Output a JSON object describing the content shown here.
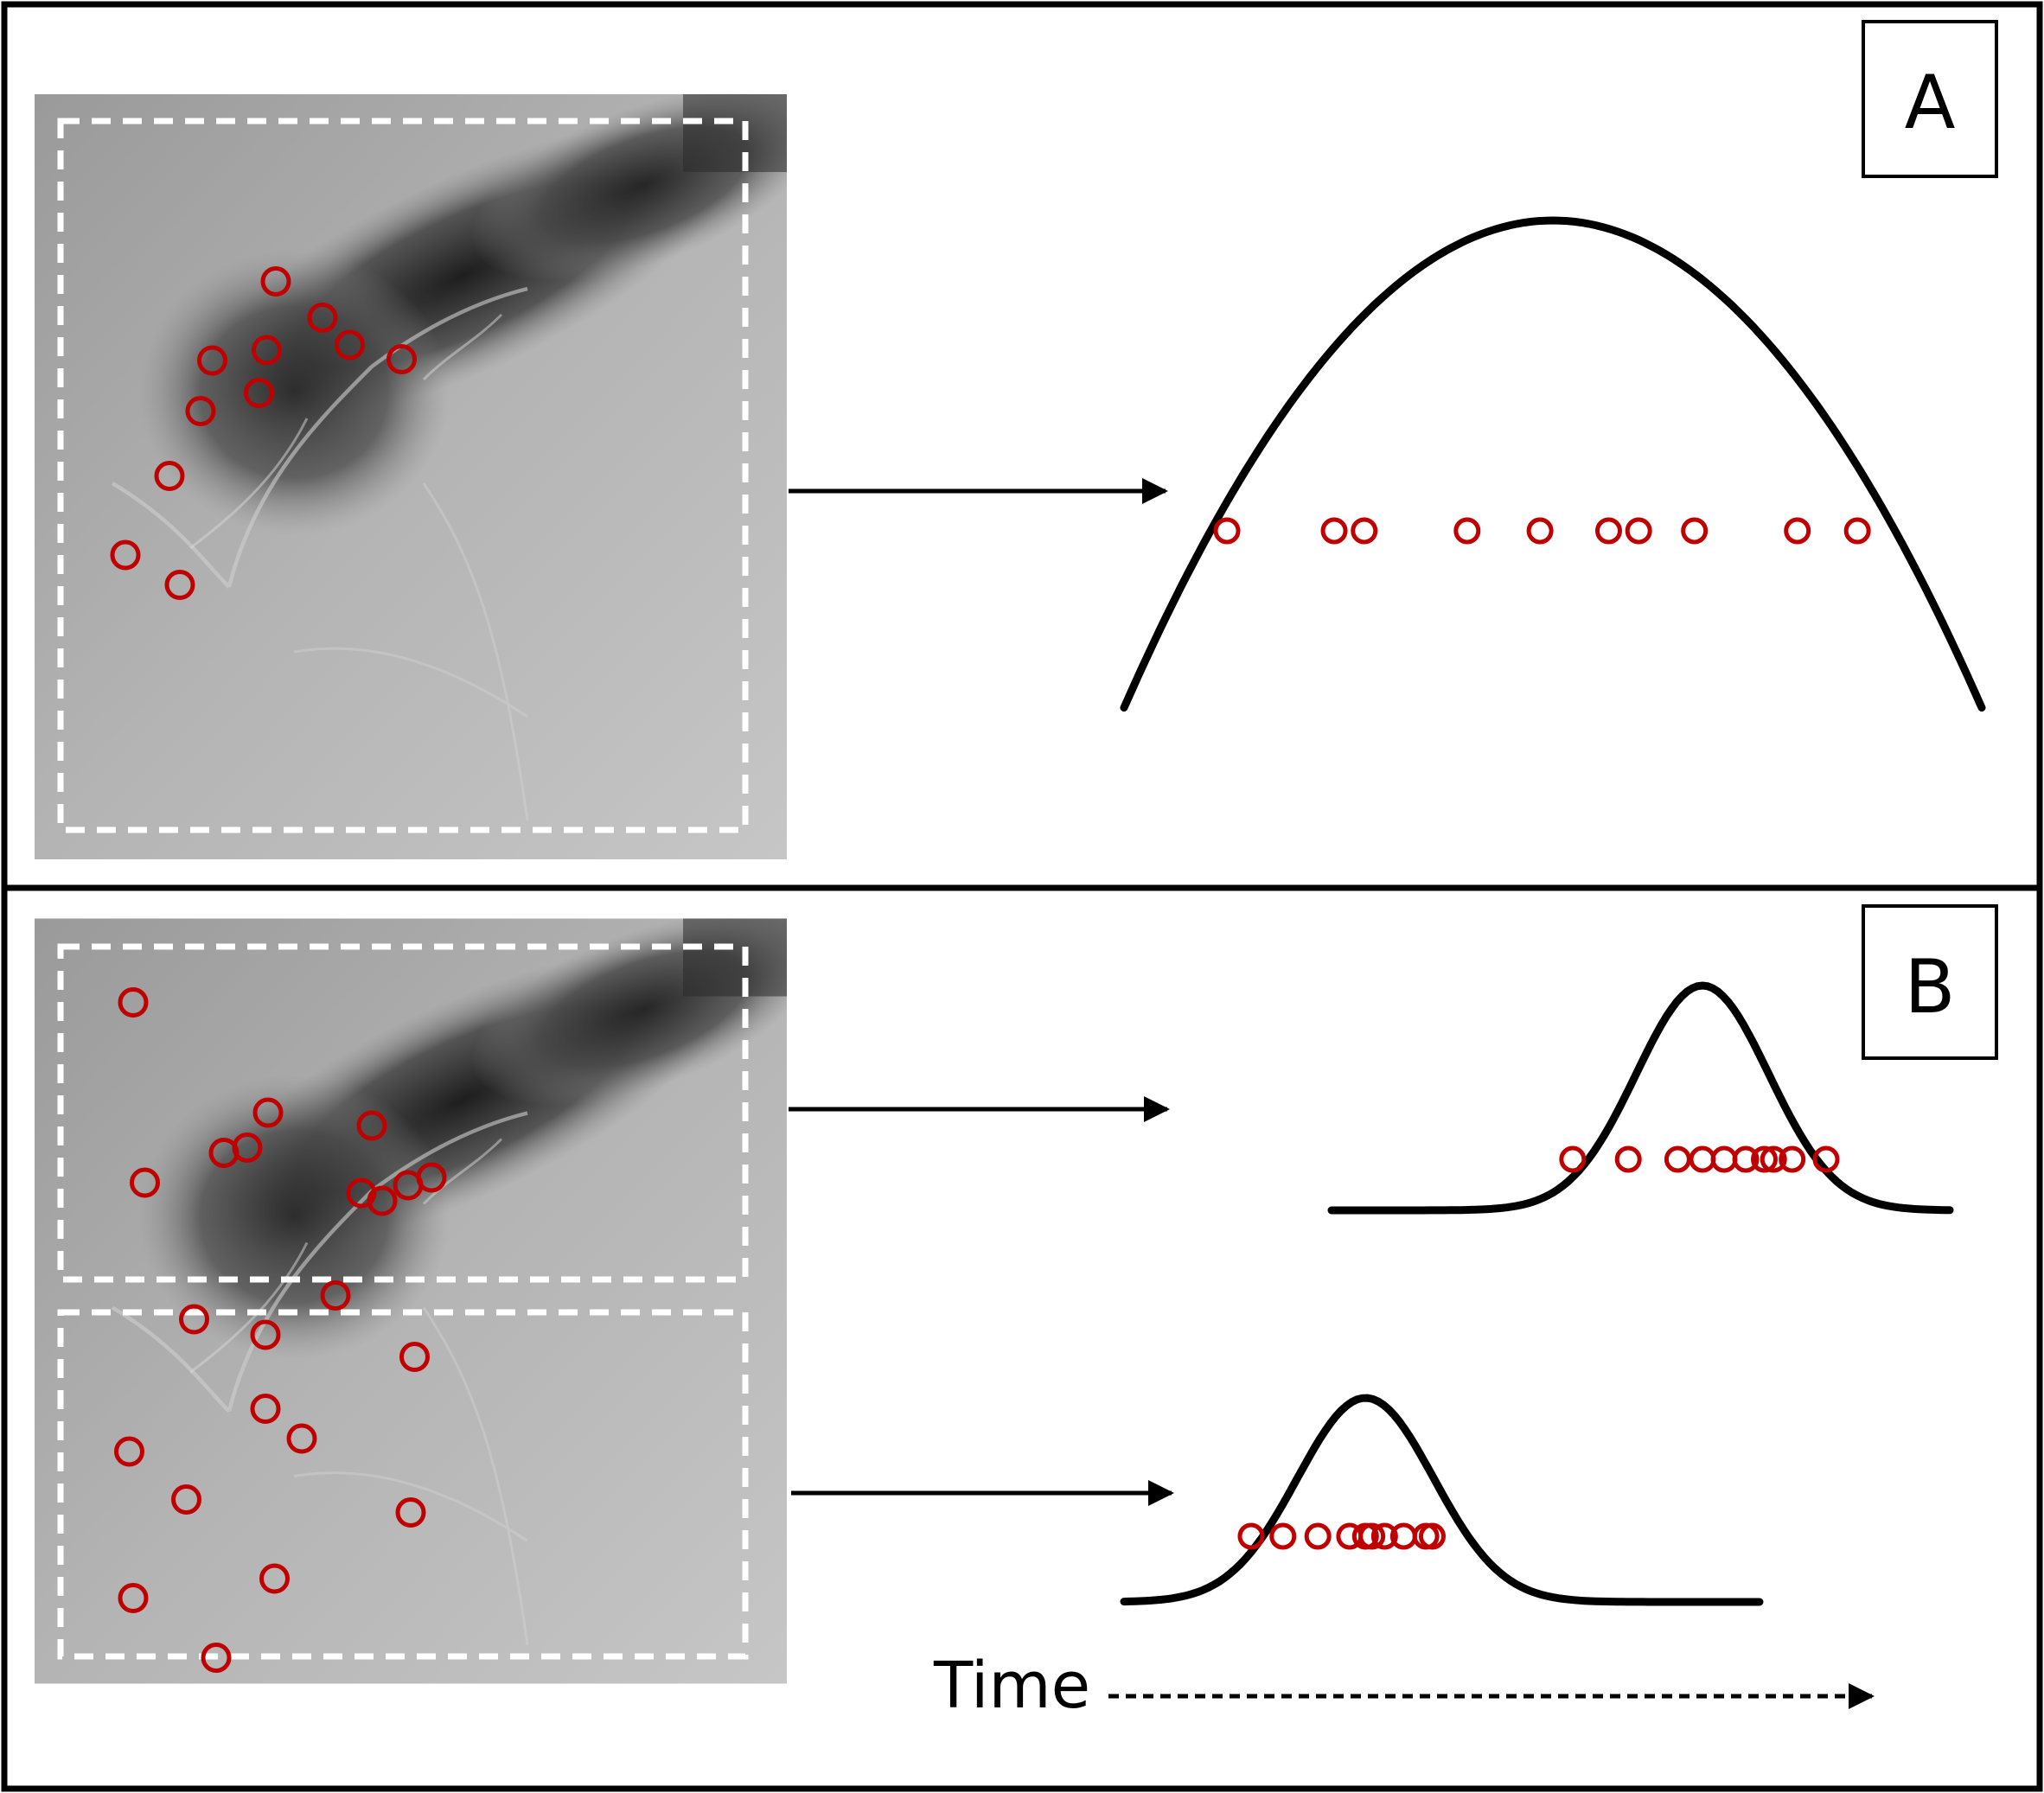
{
  "panels": [
    {
      "label": "A",
      "map_sites": [
        [
          137,
          206
        ],
        [
          179,
          198
        ],
        [
          222,
          173
        ],
        [
          243,
          194
        ],
        [
          283,
          205
        ],
        [
          186,
          145
        ],
        [
          173,
          231
        ],
        [
          128,
          245
        ],
        [
          104,
          295
        ],
        [
          112,
          379
        ],
        [
          70,
          356
        ]
      ],
      "curves": [
        {
          "peak_time": 0.5,
          "spread": 0.85,
          "point_times": [
            0.12,
            0.245,
            0.28,
            0.4,
            0.485,
            0.565,
            0.6,
            0.665,
            0.785,
            0.855
          ]
        }
      ]
    },
    {
      "label": "B",
      "map_sites": [
        [
          76,
          65
        ],
        [
          180,
          150
        ],
        [
          164,
          177
        ],
        [
          252,
          212
        ],
        [
          288,
          206
        ],
        [
          260,
          160
        ],
        [
          306,
          200
        ],
        [
          232,
          291
        ],
        [
          146,
          181
        ],
        [
          85,
          204
        ],
        [
          268,
          218
        ]
      ],
      "map_sites_lower": [
        [
          123,
          96
        ],
        [
          178,
          108
        ],
        [
          293,
          125
        ],
        [
          178,
          165
        ],
        [
          117,
          235
        ],
        [
          73,
          198
        ],
        [
          206,
          188
        ],
        [
          185,
          296
        ],
        [
          76,
          311
        ],
        [
          290,
          245
        ],
        [
          140,
          357
        ]
      ],
      "curves": [
        {
          "peak_time": 0.6,
          "spread": 0.3,
          "point_times": [
            0.39,
            0.48,
            0.56,
            0.6,
            0.635,
            0.67,
            0.7,
            0.715,
            0.745,
            0.8
          ]
        },
        {
          "peak_time": 0.38,
          "spread": 0.3,
          "point_times": [
            0.2,
            0.25,
            0.305,
            0.355,
            0.38,
            0.39,
            0.41,
            0.44,
            0.475,
            0.485
          ]
        }
      ]
    }
  ],
  "time_label": "Time",
  "colors": {
    "site_marker": "#c00000",
    "curve": "#000000",
    "frame": "#000000",
    "zone_outline": "#ffffff"
  }
}
